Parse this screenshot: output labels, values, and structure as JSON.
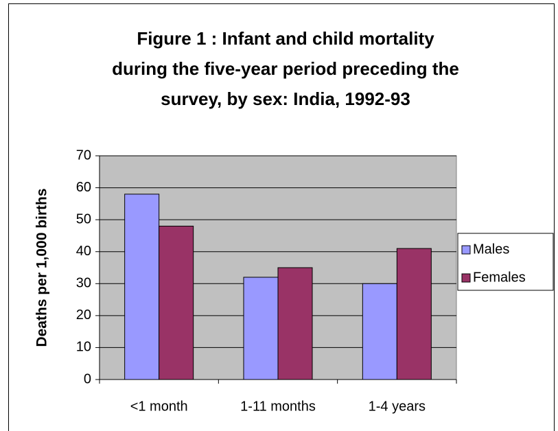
{
  "chart_data": {
    "type": "bar",
    "title": [
      "Figure 1 : Infant and child mortality",
      "during the five-year period preceding the",
      "survey, by sex: India, 1992-93"
    ],
    "y_label": "Deaths per 1,000 births",
    "categories": [
      "<1 month",
      "1-11 months",
      "1-4 years"
    ],
    "series": [
      {
        "name": "Males",
        "color": "#9999ff",
        "values": [
          58,
          32,
          30
        ]
      },
      {
        "name": "Females",
        "color": "#993366",
        "values": [
          48,
          35,
          41
        ]
      }
    ],
    "ylim": [
      0,
      70
    ],
    "yticks": [
      0,
      10,
      20,
      30,
      40,
      50,
      60,
      70
    ],
    "grid": true,
    "legend": "right"
  }
}
